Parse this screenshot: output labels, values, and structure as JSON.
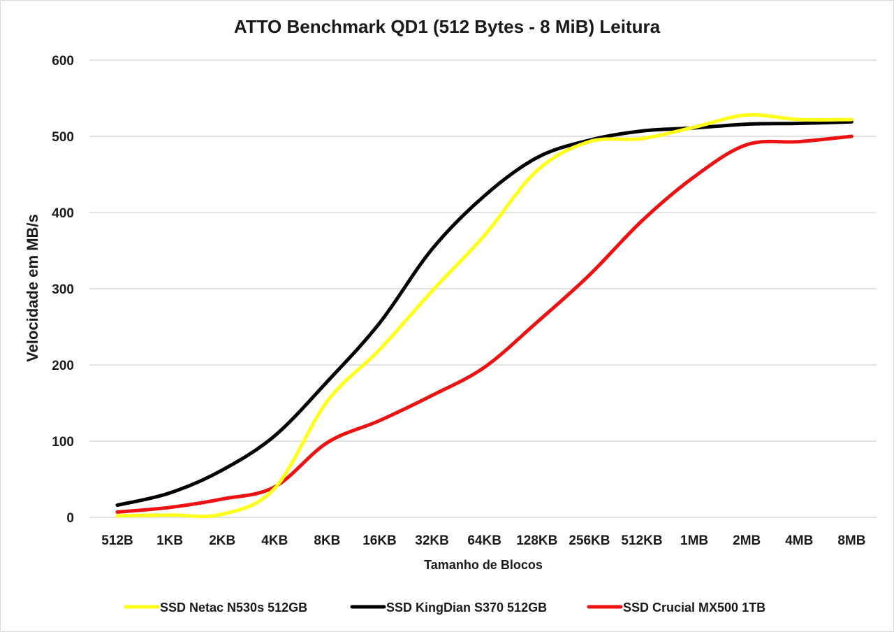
{
  "chart_data": {
    "type": "line",
    "title": "ATTO Benchmark QD1 (512 Bytes - 8 MiB) Leitura",
    "xlabel": "Tamanho de Blocos",
    "ylabel": "Velocidade em MB/s",
    "ylim": [
      0,
      600
    ],
    "yticks": [
      0,
      100,
      200,
      300,
      400,
      500,
      600
    ],
    "categories": [
      "512B",
      "1KB",
      "2KB",
      "4KB",
      "8KB",
      "16KB",
      "32KB",
      "64KB",
      "128KB",
      "256KB",
      "512KB",
      "1MB",
      "2MB",
      "4MB",
      "8MB"
    ],
    "grid": true,
    "legend_position": "bottom",
    "series": [
      {
        "name": "SSD Netac N530s 512GB",
        "color": "#FFFF1A",
        "values": [
          2,
          3,
          4,
          38,
          152,
          220,
          297,
          370,
          455,
          493,
          497,
          512,
          528,
          522,
          522
        ]
      },
      {
        "name": "SSD KingDian S370 512GB",
        "color": "#000000",
        "values": [
          16,
          32,
          62,
          107,
          178,
          255,
          352,
          422,
          472,
          495,
          507,
          511,
          516,
          517,
          519
        ]
      },
      {
        "name": "SSD Crucial MX500 1TB",
        "color": "#EE1111",
        "values": [
          7,
          13,
          24,
          40,
          98,
          127,
          160,
          197,
          256,
          318,
          389,
          447,
          489,
          493,
          500
        ]
      }
    ]
  }
}
